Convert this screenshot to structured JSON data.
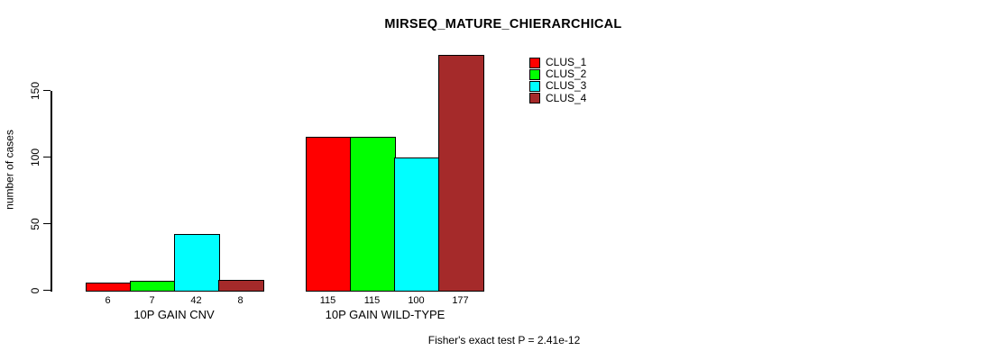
{
  "chart_data": {
    "type": "bar",
    "title": "MIRSEQ_MATURE_CHIERARCHICAL",
    "ylabel": "number of cases",
    "xlabel": "",
    "ylim": [
      0,
      180
    ],
    "yticks": [
      0,
      50,
      100,
      150
    ],
    "grid": false,
    "legend_position": "top-right-inside",
    "categories": [
      "10P GAIN CNV",
      "10P GAIN WILD-TYPE"
    ],
    "series": [
      {
        "name": "CLUS_1",
        "color": "#ff0000",
        "values": [
          6,
          115
        ]
      },
      {
        "name": "CLUS_2",
        "color": "#00ff00",
        "values": [
          7,
          115
        ]
      },
      {
        "name": "CLUS_3",
        "color": "#00ffff",
        "values": [
          42,
          100
        ]
      },
      {
        "name": "CLUS_4",
        "color": "#a52a2a",
        "values": [
          8,
          177
        ]
      }
    ],
    "bar_value_labels": [
      [
        "6",
        "7",
        "42",
        "8"
      ],
      [
        "115",
        "115",
        "100",
        "177"
      ]
    ],
    "annotation": "Fisher's exact test P = 2.41e-12"
  },
  "colors": {
    "background": "#ffffff",
    "axis": "#000000",
    "bar_border": "#000000",
    "text": "#000000"
  }
}
